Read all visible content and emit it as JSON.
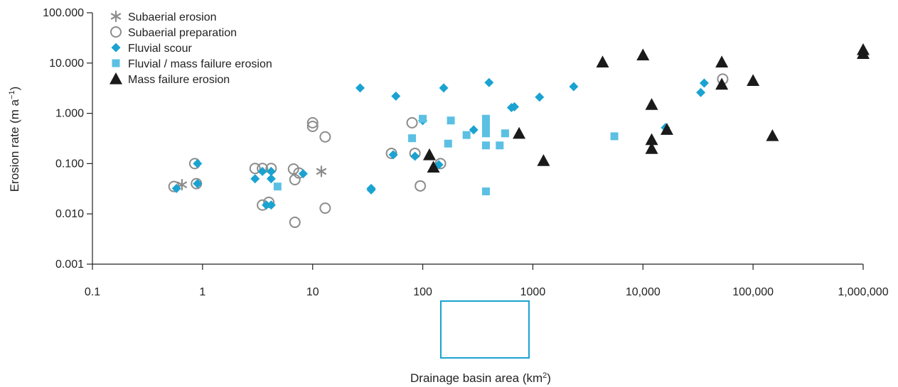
{
  "chart_data": {
    "type": "scatter",
    "xscale": "log",
    "yscale": "log",
    "xlim": [
      0.1,
      1000000
    ],
    "ylim": [
      0.001,
      100
    ],
    "x_ticks": [
      "0.1",
      "1",
      "10",
      "100",
      "1000",
      "10,000",
      "100,000",
      "1,000,000"
    ],
    "y_ticks": [
      "0.001",
      "0.010",
      "0.100",
      "1.000",
      "10.000",
      "100.000"
    ],
    "xlabel_text": "Drainage basin area (km",
    "xlabel_sup": "2",
    "xlabel_close": ")",
    "ylabel_text": "Erosion rate (m a",
    "ylabel_sup": "−1",
    "ylabel_close": ")",
    "legend_position": "top-left",
    "grid": false,
    "colors": {
      "axis": "#222222",
      "highlight_box": "#1aa3d1"
    },
    "series": [
      {
        "name": "Subaerial erosion",
        "marker": "asterisk",
        "color": "#8c8c8c",
        "points": [
          [
            0.65,
            0.038
          ],
          [
            12,
            0.07
          ]
        ]
      },
      {
        "name": "Subaerial preparation",
        "marker": "circle-open",
        "color": "#8c8c8c",
        "points": [
          [
            0.55,
            0.035
          ],
          [
            0.85,
            0.1
          ],
          [
            0.88,
            0.04
          ],
          [
            3.0,
            0.08
          ],
          [
            3.5,
            0.08
          ],
          [
            4.2,
            0.08
          ],
          [
            3.5,
            0.015
          ],
          [
            4.0,
            0.017
          ],
          [
            6.7,
            0.078
          ],
          [
            6.9,
            0.048
          ],
          [
            7.5,
            0.065
          ],
          [
            6.9,
            0.0068
          ],
          [
            10,
            0.65
          ],
          [
            10,
            0.55
          ],
          [
            13,
            0.34
          ],
          [
            13,
            0.013
          ],
          [
            52,
            0.16
          ],
          [
            85,
            0.16
          ],
          [
            80,
            0.65
          ],
          [
            95,
            0.036
          ],
          [
            145,
            0.1
          ],
          [
            53000,
            4.8
          ]
        ]
      },
      {
        "name": "Fluvial scour",
        "marker": "diamond",
        "color": "#1aa3d1",
        "points": [
          [
            0.58,
            0.032
          ],
          [
            0.9,
            0.1
          ],
          [
            0.9,
            0.04
          ],
          [
            3.0,
            0.05
          ],
          [
            3.5,
            0.07
          ],
          [
            4.2,
            0.07
          ],
          [
            4.2,
            0.05
          ],
          [
            3.8,
            0.015
          ],
          [
            4.2,
            0.015
          ],
          [
            8.2,
            0.063
          ],
          [
            27,
            3.2
          ],
          [
            34,
            0.032
          ],
          [
            34,
            0.03
          ],
          [
            54,
            0.15
          ],
          [
            57,
            2.2
          ],
          [
            85,
            0.14
          ],
          [
            100,
            0.72
          ],
          [
            140,
            0.095
          ],
          [
            155,
            3.2
          ],
          [
            290,
            0.47
          ],
          [
            400,
            4.1
          ],
          [
            640,
            1.3
          ],
          [
            680,
            1.35
          ],
          [
            1150,
            2.1
          ],
          [
            2350,
            3.4
          ],
          [
            16000,
            0.52
          ],
          [
            33500,
            2.6
          ],
          [
            36000,
            4.0
          ]
        ]
      },
      {
        "name": "Fluvial / mass failure erosion",
        "marker": "square",
        "color": "#5bc0e3",
        "points": [
          [
            4.8,
            0.035
          ],
          [
            80,
            0.32
          ],
          [
            100,
            0.78
          ],
          [
            170,
            0.25
          ],
          [
            180,
            0.72
          ],
          [
            250,
            0.37
          ],
          [
            375,
            0.78
          ],
          [
            375,
            0.6
          ],
          [
            375,
            0.48
          ],
          [
            375,
            0.4
          ],
          [
            375,
            0.23
          ],
          [
            375,
            0.028
          ],
          [
            500,
            0.23
          ],
          [
            560,
            0.4
          ],
          [
            5500,
            0.35
          ]
        ]
      },
      {
        "name": "Mass failure erosion",
        "marker": "triangle",
        "color": "#1a1a1a",
        "points": [
          [
            115,
            0.15
          ],
          [
            125,
            0.085
          ],
          [
            750,
            0.4
          ],
          [
            1250,
            0.115
          ],
          [
            4300,
            10.5
          ],
          [
            10000,
            14.5
          ],
          [
            12000,
            1.5
          ],
          [
            12000,
            0.3
          ],
          [
            12000,
            0.2
          ],
          [
            16500,
            0.48
          ],
          [
            52000,
            10.5
          ],
          [
            52000,
            3.8
          ],
          [
            100000,
            4.5
          ],
          [
            150000,
            0.36
          ],
          [
            1000000,
            18.5
          ],
          [
            1000000,
            15.5
          ]
        ]
      }
    ]
  }
}
